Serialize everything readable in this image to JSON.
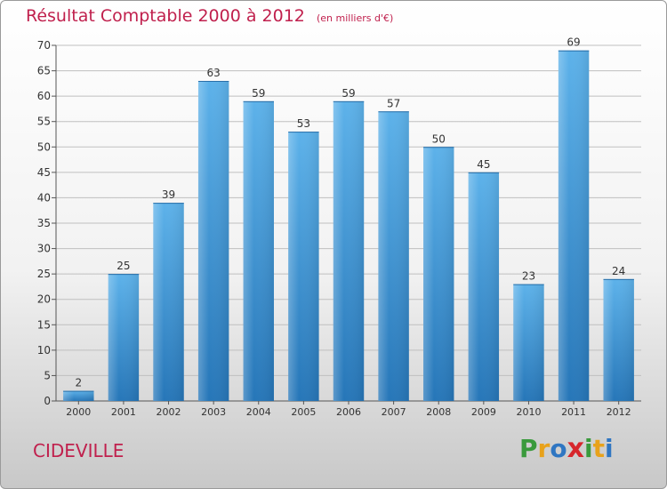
{
  "header": {
    "title": "Résultat Comptable 2000 à 2012",
    "subtitle": "(en milliers d'€)"
  },
  "footer": {
    "commune": "CIDEVILLE",
    "logo_letters": [
      "P",
      "r",
      "o",
      "x",
      "i",
      "t",
      "i"
    ],
    "logo_colors": [
      "#3a9a3c",
      "#e8a21b",
      "#2f76c2",
      "#d7262c",
      "#3a9a3c",
      "#e8a21b",
      "#2f76c2"
    ]
  },
  "colors": {
    "bar": "#4aa3e0",
    "bar_dark": "#2a7cbf",
    "grid": "#bfbfbf",
    "title": "#c0204d"
  },
  "chart_data": {
    "type": "bar",
    "title": "Résultat Comptable 2000 à 2012",
    "subtitle": "(en milliers d'€)",
    "categories": [
      "2000",
      "2001",
      "2002",
      "2003",
      "2004",
      "2005",
      "2006",
      "2007",
      "2008",
      "2009",
      "2010",
      "2011",
      "2012"
    ],
    "values": [
      2,
      25,
      39,
      63,
      59,
      53,
      59,
      57,
      50,
      45,
      23,
      69,
      24
    ],
    "ylim": [
      0,
      70
    ],
    "yticks": [
      0,
      5,
      10,
      15,
      20,
      25,
      30,
      35,
      40,
      45,
      50,
      55,
      60,
      65,
      70
    ],
    "grid": true,
    "xlabel": "",
    "ylabel": ""
  }
}
